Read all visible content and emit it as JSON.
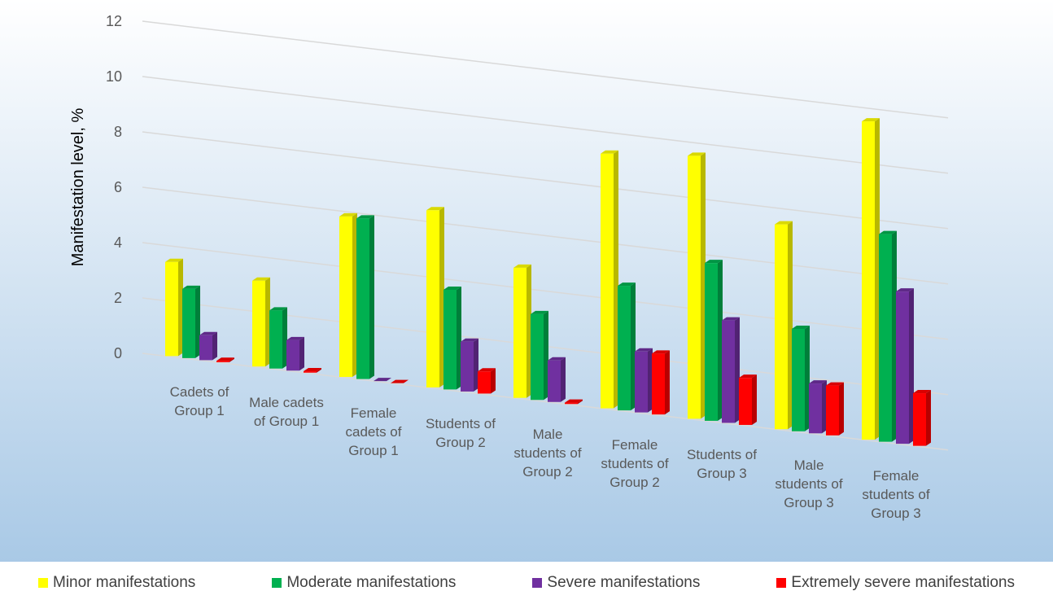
{
  "chart_data": {
    "type": "bar",
    "y_label": "Manifestation level, %",
    "categories": [
      "Cadets of Group 1",
      "Male cadets of Group 1",
      "Female cadets of Group 1",
      "Students of Group 2",
      "Male students of Group 2",
      "Female students of Group 2",
      "Students of Group 3",
      "Male students of Group 3",
      "Female students of Group 3"
    ],
    "series": [
      {
        "name": "Minor manifestations",
        "color": "#ffff00",
        "values": [
          3.4,
          3.1,
          5.8,
          6.4,
          4.7,
          9.2,
          9.5,
          7.4,
          11.5
        ]
      },
      {
        "name": "Moderate manifestations",
        "color": "#00b050",
        "values": [
          2.5,
          2.1,
          5.8,
          3.6,
          3.1,
          4.5,
          5.7,
          3.7,
          7.5
        ]
      },
      {
        "name": "Severe manifestations",
        "color": "#7030a0",
        "values": [
          0.9,
          1.1,
          0,
          1.8,
          1.5,
          2.2,
          3.7,
          1.8,
          5.5
        ]
      },
      {
        "name": "Extremely severe manifestations",
        "color": "#ff0000",
        "values": [
          0.05,
          0.05,
          0,
          0.8,
          0.05,
          2.2,
          1.7,
          1.8,
          1.9
        ]
      }
    ],
    "ylim": [
      0,
      12
    ],
    "yticks": [
      0,
      2,
      4,
      6,
      8,
      10,
      12
    ],
    "grid": true
  }
}
